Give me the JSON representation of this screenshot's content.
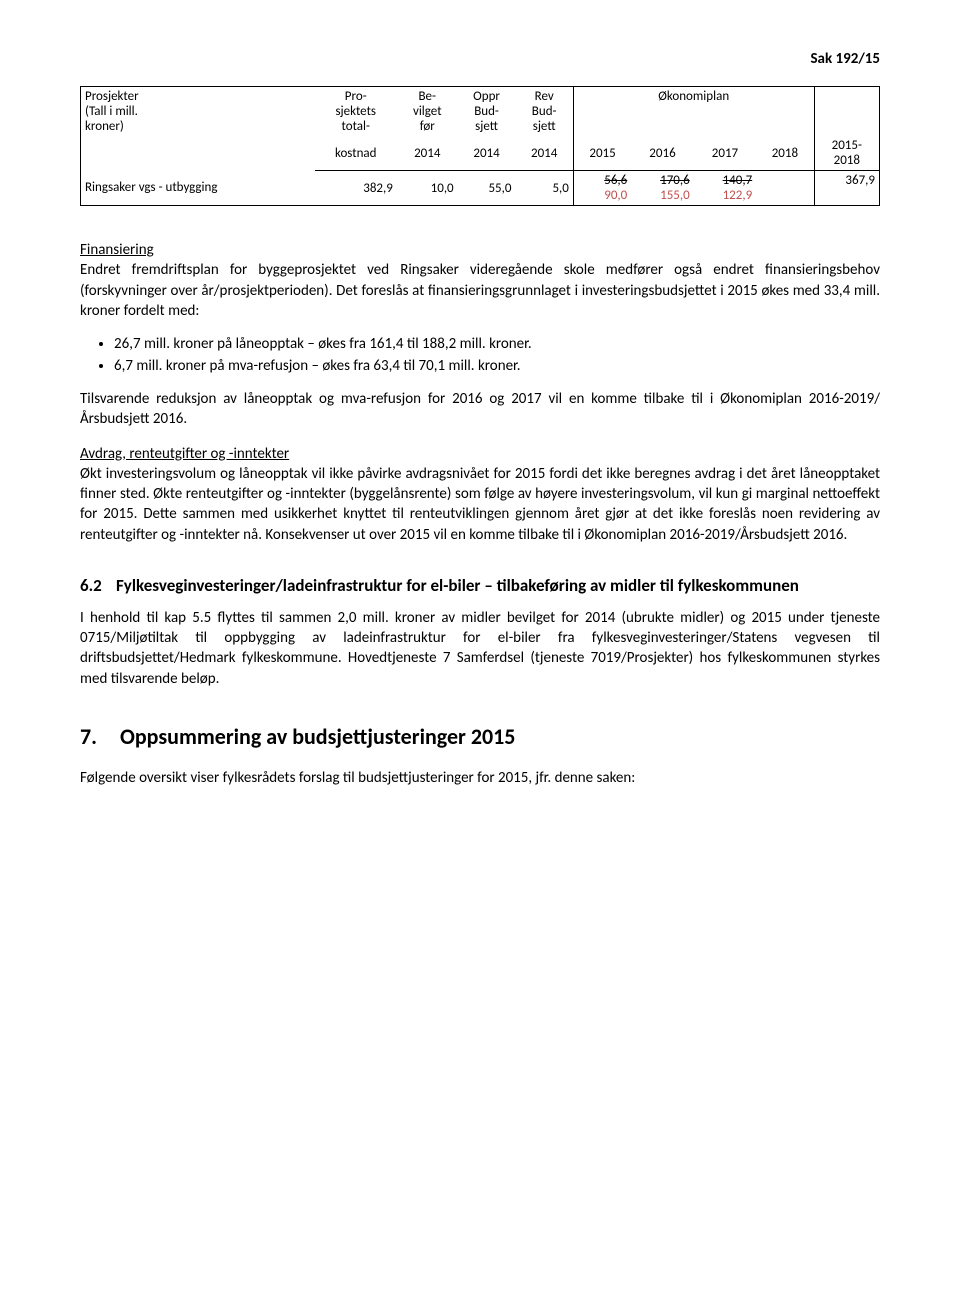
{
  "header": {
    "sak": "Sak 192/15"
  },
  "table": {
    "h1": {
      "c0": "Prosjekter\n(Tall i mill.\nkroner)",
      "c1": "Pro-\nsjektets\ntotal-",
      "c2": "Be-\nvilget\nfør",
      "c3": "Oppr\nBud-\nsjett",
      "c4": "Rev\nBud-\nsjett",
      "c5": "Økonomiplan"
    },
    "h2": {
      "c1": "kostnad",
      "c2": "2014",
      "c3": "2014",
      "c4": "2014",
      "c5": "2015",
      "c6": "2016",
      "c7": "2017",
      "c8": "2018",
      "c9": "2015-\n2018"
    },
    "row": {
      "c0": "Ringsaker vgs - utbygging",
      "c1": "382,9",
      "c2": "10,0",
      "c3": "55,0",
      "c4": "5,0",
      "c5s": "56,6",
      "c6s": "170,6",
      "c7s": "140,7",
      "c9": "367,9",
      "c5r": "90,0",
      "c6r": "155,0",
      "c7r": "122,9"
    }
  },
  "fin": {
    "title": "Finansiering",
    "p1": "Endret fremdriftsplan for byggeprosjektet ved Ringsaker videregående skole medfører også endret finansieringsbehov (forskyvninger over år/prosjektperioden). Det foreslås at finansieringsgrunnlaget i investeringsbudsjettet i 2015 økes med 33,4 mill. kroner fordelt med:",
    "b1": "26,7 mill. kroner på låneopptak – økes fra 161,4 til 188,2 mill. kroner.",
    "b2": "6,7 mill. kroner på mva-refusjon – økes fra 63,4 til 70,1 mill. kroner.",
    "p2": "Tilsvarende reduksjon av låneopptak og mva-refusjon for 2016 og 2017 vil en komme tilbake til i Økonomiplan 2016-2019/Årsbudsjett 2016.",
    "avd_title": "Avdrag, renteutgifter og -inntekter",
    "p3": "Økt investeringsvolum og låneopptak vil ikke påvirke avdragsnivået for 2015 fordi det ikke beregnes avdrag i det året låneopptaket finner sted. Økte renteutgifter og -inntekter (byggelånsrente) som følge av høyere investeringsvolum, vil kun gi marginal nettoeffekt for 2015. Dette sammen med usikkerhet knyttet til renteutviklingen gjennom året gjør at det ikke foreslås noen revidering av renteutgifter og -inntekter nå. Konsekvenser ut over 2015 vil en komme tilbake til i Økonomiplan 2016-2019/Årsbudsjett 2016."
  },
  "s62": {
    "num": "6.2",
    "title": "Fylkesveginvesteringer/ladeinfrastruktur for el-biler – tilbakeføring av midler til fylkeskommunen",
    "p": "I henhold til kap 5.5 flyttes til sammen 2,0 mill. kroner av midler bevilget for 2014 (ubrukte midler) og 2015 under tjeneste 0715/Miljøtiltak til oppbygging av ladeinfrastruktur for el-biler fra fylkesveginvesteringer/Statens vegvesen til driftsbudsjettet/Hedmark fylkeskommune. Hovedtjeneste 7 Samferdsel (tjeneste 7019/Prosjekter) hos fylkeskommunen styrkes med tilsvarende beløp."
  },
  "s7": {
    "num": "7.",
    "title": "Oppsummering av budsjettjusteringer 2015",
    "p": "Følgende oversikt viser fylkesrådets forslag til budsjettjusteringer for 2015, jfr. denne saken:"
  }
}
